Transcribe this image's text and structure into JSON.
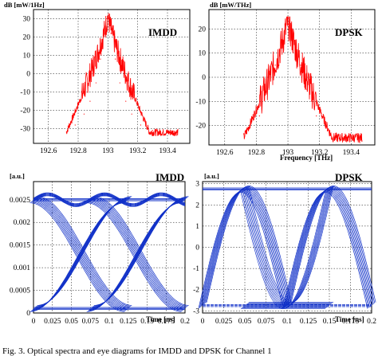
{
  "chart_data": [
    {
      "type": "line",
      "title": "IMDD",
      "ylabel": "dB [mW/1Hz]",
      "xlabel": "",
      "xlim": [
        192.5,
        193.55
      ],
      "ylim": [
        -38,
        35
      ],
      "xticks": [
        "192.6",
        "192.8",
        "193",
        "193.2",
        "193.4"
      ],
      "yticks": [
        "30",
        "20",
        "10",
        "0",
        "-10",
        "-20",
        "-30"
      ],
      "grid": true,
      "color": "#ff0000",
      "center": 193.0,
      "peak": 32,
      "floor": -32,
      "x": [
        192.78,
        192.84,
        192.88,
        192.92,
        192.95,
        192.98,
        193.0,
        193.02,
        193.05,
        193.08,
        193.12,
        193.16,
        193.22,
        193.3
      ],
      "y": [
        -28,
        -22,
        -15,
        -5,
        8,
        22,
        30,
        22,
        8,
        -5,
        -15,
        -22,
        -28,
        -31
      ]
    },
    {
      "type": "line",
      "title": "DPSK",
      "ylabel": "dB [mW/THz]",
      "xlabel": "Frequency [THz]",
      "xlim": [
        192.5,
        193.55
      ],
      "ylim": [
        -28,
        28
      ],
      "xticks": [
        "192.6",
        "192.8",
        "193",
        "193.2",
        "193.4"
      ],
      "yticks": [
        "20",
        "10",
        "0",
        "-10",
        "-20"
      ],
      "grid": true,
      "color": "#ff0000",
      "center": 193.0,
      "peak": 24,
      "floor": -25,
      "x": [
        192.75,
        192.82,
        192.88,
        192.92,
        192.96,
        193.0,
        193.04,
        193.08,
        193.12,
        193.18,
        193.25,
        193.32
      ],
      "y": [
        -22,
        -16,
        -5,
        5,
        15,
        22,
        15,
        5,
        -5,
        -16,
        -22,
        -24
      ]
    },
    {
      "type": "line",
      "title": "IMDD",
      "ylabel": "[a.u.]",
      "xlabel": "Time [ns]",
      "xlim": [
        0,
        0.2
      ],
      "ylim": [
        0,
        0.0029
      ],
      "xticks": [
        "0",
        "0.025",
        "0.05",
        "0.075",
        "0.1",
        "0.125",
        "0.15",
        "0.175",
        "0.2"
      ],
      "yticks": [
        "0.0025",
        "0.002",
        "0.0015",
        "0.001",
        "0.0005",
        "0"
      ],
      "grid": true,
      "color": "#1030c8",
      "levels": [
        0.0001,
        0.0025
      ],
      "crossings": [
        0.0625,
        0.1375
      ]
    },
    {
      "type": "line",
      "title": "DPSK",
      "ylabel": "[a.u.]",
      "xlabel": "Time [ns]",
      "xlim": [
        0,
        0.2
      ],
      "ylim": [
        -3.1,
        3.1
      ],
      "xticks": [
        "0",
        "0.025",
        "0.05",
        "0.075",
        "0.1",
        "0.125",
        "0.15",
        "0.175",
        "0.2"
      ],
      "yticks": [
        "3",
        "2",
        "1",
        "0",
        "-1",
        "-2",
        "-3"
      ],
      "grid": true,
      "color": "#1030c8",
      "levels": [
        -2.75,
        2.75
      ],
      "crossings": [
        0.0,
        0.1,
        0.2
      ]
    }
  ],
  "caption": "Fig. 3. Optical spectra and eye diagrams for IMDD and DPSK for Channel 1"
}
